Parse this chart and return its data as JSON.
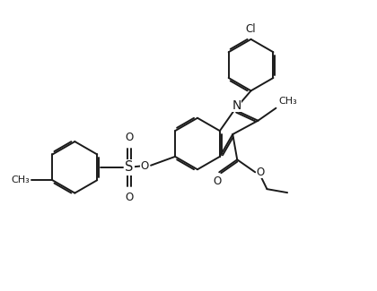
{
  "bg_color": "#ffffff",
  "line_color": "#1a1a1a",
  "line_width": 1.4,
  "dbo": 0.06,
  "font_size": 8.5,
  "figsize": [
    4.2,
    3.25
  ],
  "dpi": 100,
  "xlim": [
    -1.0,
    8.5
  ],
  "ylim": [
    -1.2,
    6.8
  ]
}
